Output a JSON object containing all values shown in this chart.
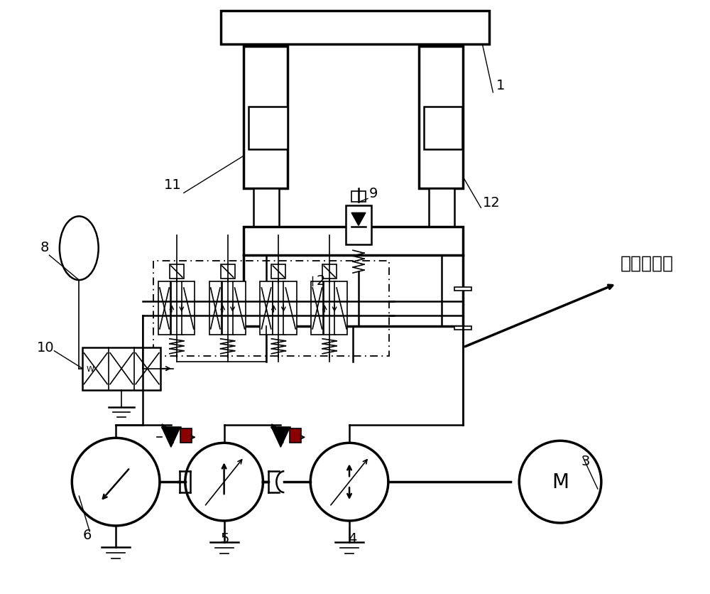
{
  "bg_color": "#ffffff",
  "line_color": "#000000",
  "accent_color": "#8B0000",
  "chinese_text": "其它执行器",
  "motor_label": "M",
  "figsize": [
    10.0,
    8.37
  ],
  "dpi": 100
}
